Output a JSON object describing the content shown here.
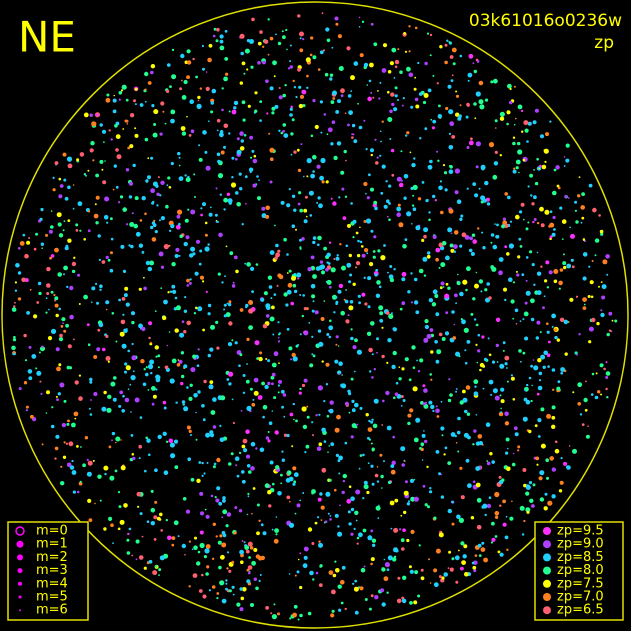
{
  "corner_label": "NE",
  "image_id": "03k61016o0236w",
  "mode": "zp",
  "magnitude_legend": {
    "items": [
      {
        "label": "m=0"
      },
      {
        "label": "m=1"
      },
      {
        "label": "m=2"
      },
      {
        "label": "m=3"
      },
      {
        "label": "m=4"
      },
      {
        "label": "m=5"
      },
      {
        "label": "m=6"
      }
    ]
  },
  "zp_legend": {
    "items": [
      {
        "label": "zp=9.5",
        "color": "#ff30ff"
      },
      {
        "label": "zp=9.0",
        "color": "#b040ff"
      },
      {
        "label": "zp=8.5",
        "color": "#20d0ff"
      },
      {
        "label": "zp=8.0",
        "color": "#20ff90"
      },
      {
        "label": "zp=7.5",
        "color": "#ffff00"
      },
      {
        "label": "zp=7.0",
        "color": "#ff8020"
      },
      {
        "label": "zp=6.5",
        "color": "#ff6070"
      }
    ]
  }
}
